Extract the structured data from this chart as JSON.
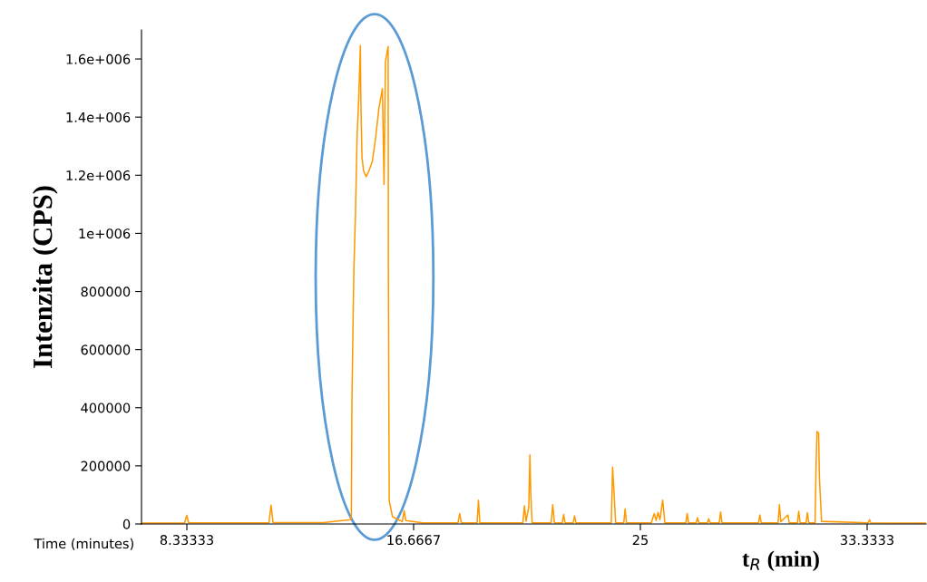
{
  "chart_data": {
    "type": "line",
    "xlabel": "Time (minutes)",
    "ylabel": "Intenzita (CPS)",
    "annotations": [
      "t$_{R}$ (min)"
    ],
    "x": [
      6.7,
      8.25,
      8.33,
      8.4,
      11.35,
      11.43,
      11.5,
      13.36,
      14.02,
      14.36,
      14.38,
      14.4,
      14.47,
      14.53,
      14.59,
      14.65,
      14.71,
      14.73,
      14.77,
      14.83,
      14.92,
      15.02,
      15.15,
      15.27,
      15.39,
      15.52,
      15.58,
      15.63,
      15.73,
      15.74,
      15.77,
      15.89,
      16.25,
      16.32,
      16.38,
      17.0,
      18.3,
      18.36,
      18.42,
      19.0,
      19.05,
      19.1,
      20.68,
      20.74,
      20.8,
      20.9,
      20.94,
      20.97,
      21.02,
      21.72,
      21.78,
      21.84,
      22.13,
      22.18,
      22.23,
      22.53,
      22.58,
      22.63,
      23.93,
      23.98,
      24.04,
      24.09,
      24.39,
      24.44,
      24.49,
      25.4,
      25.51,
      25.58,
      25.65,
      25.72,
      25.82,
      25.9,
      26.67,
      26.72,
      26.77,
      27.05,
      27.1,
      27.15,
      27.46,
      27.51,
      27.56,
      27.9,
      27.95,
      28.0,
      29.34,
      29.39,
      29.44,
      30.06,
      30.11,
      30.16,
      30.42,
      30.47,
      30.77,
      30.82,
      30.87,
      31.09,
      31.14,
      31.19,
      31.42,
      31.46,
      31.49,
      31.55,
      31.58,
      31.66,
      33.37,
      33.42,
      33.47,
      35.5
    ],
    "values": [
      3000,
      3000,
      30000,
      4000,
      4000,
      65000,
      5000,
      5000,
      12000,
      15000,
      25000,
      423000,
      871000,
      1066000,
      1338000,
      1464000,
      1646000,
      1443000,
      1260000,
      1214000,
      1195000,
      1214000,
      1248000,
      1328000,
      1430000,
      1498000,
      1168000,
      1591000,
      1643000,
      859000,
      80000,
      25000,
      8000,
      46000,
      12000,
      4000,
      4000,
      36000,
      4000,
      4000,
      82000,
      4000,
      4000,
      62000,
      10000,
      60000,
      238000,
      116000,
      4000,
      4000,
      66000,
      4000,
      4000,
      33000,
      4000,
      4000,
      28000,
      4000,
      4000,
      196000,
      95000,
      4000,
      4000,
      52000,
      4000,
      4000,
      36000,
      12000,
      40000,
      15000,
      82000,
      4000,
      4000,
      36000,
      4000,
      4000,
      22000,
      4000,
      4000,
      18000,
      4000,
      4000,
      41000,
      4000,
      4000,
      31000,
      4000,
      4000,
      66000,
      8000,
      31000,
      4000,
      4000,
      44000,
      4000,
      4000,
      39000,
      4000,
      4000,
      212000,
      318000,
      313000,
      158000,
      9000,
      4000,
      15000,
      4000,
      3000
    ],
    "color": "#ff9900",
    "xlim": [
      6.6667,
      35.5
    ],
    "xticks": [
      {
        "value": 8.33333,
        "label": "8.33333"
      },
      {
        "value": 16.6667,
        "label": "16.6667"
      },
      25,
      {
        "value": 33.3333,
        "label": "33.3333"
      }
    ],
    "ylim": [
      0,
      1700000
    ],
    "yticks": [
      0,
      200000,
      400000,
      600000,
      800000,
      {
        "value": 1000000,
        "label": "1e+006"
      },
      {
        "value": 1200000,
        "label": "1.2e+006"
      },
      {
        "value": 1400000,
        "label": "1.4e+006"
      },
      {
        "value": 1600000,
        "label": "1.6e+006"
      }
    ],
    "grid": false,
    "legend": false,
    "marker": "none",
    "line_style": "solid"
  }
}
